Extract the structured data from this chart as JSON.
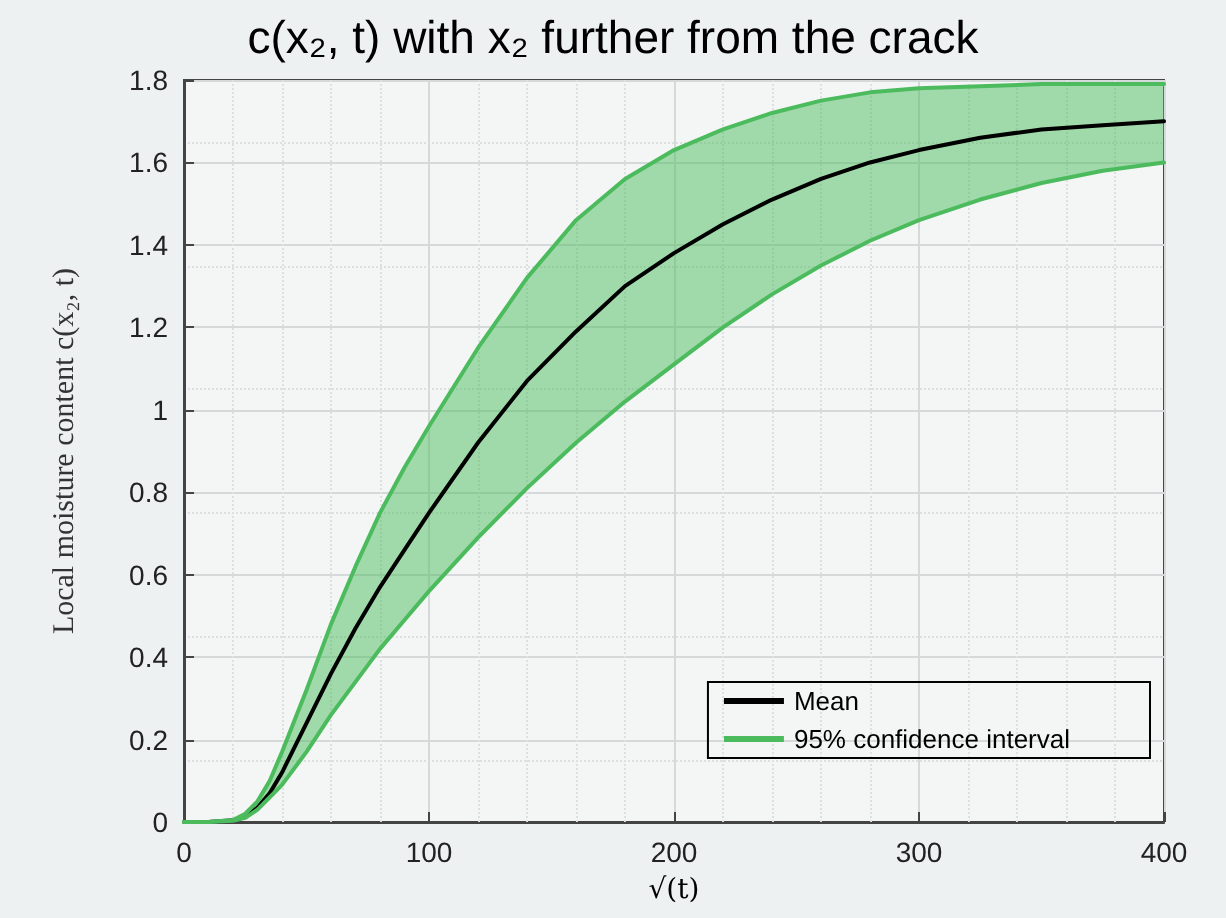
{
  "chart_data": {
    "type": "line",
    "title": "c(x₂, t) with x₂ further from the crack",
    "xlabel": "√(t)",
    "ylabel": "Local moisture content c(x₂, t)",
    "x": [
      0,
      10,
      20,
      25,
      30,
      35,
      40,
      50,
      60,
      70,
      80,
      90,
      100,
      120,
      140,
      160,
      180,
      200,
      220,
      240,
      260,
      280,
      300,
      325,
      350,
      375,
      400
    ],
    "series": [
      {
        "name": "Mean",
        "color": "#000000",
        "values": [
          0,
          0,
          0.004,
          0.015,
          0.035,
          0.07,
          0.12,
          0.24,
          0.36,
          0.47,
          0.57,
          0.66,
          0.75,
          0.92,
          1.07,
          1.19,
          1.3,
          1.38,
          1.45,
          1.51,
          1.56,
          1.6,
          1.63,
          1.66,
          1.68,
          1.69,
          1.7
        ],
        "lower": [
          0,
          0,
          0.003,
          0.01,
          0.03,
          0.06,
          0.09,
          0.17,
          0.26,
          0.34,
          0.42,
          0.49,
          0.56,
          0.69,
          0.81,
          0.92,
          1.02,
          1.11,
          1.2,
          1.28,
          1.35,
          1.41,
          1.46,
          1.51,
          1.55,
          1.58,
          1.6
        ],
        "upper": [
          0,
          0,
          0.005,
          0.02,
          0.05,
          0.1,
          0.17,
          0.32,
          0.48,
          0.62,
          0.75,
          0.86,
          0.96,
          1.15,
          1.32,
          1.46,
          1.56,
          1.63,
          1.68,
          1.72,
          1.75,
          1.77,
          1.78,
          1.785,
          1.79,
          1.79,
          1.79
        ]
      },
      {
        "name": "95% confidence interval",
        "color": "#4cbb5e",
        "values": [
          0,
          0,
          0.005,
          0.02,
          0.05,
          0.1,
          0.17,
          0.32,
          0.48,
          0.62,
          0.75,
          0.86,
          0.96,
          1.15,
          1.32,
          1.46,
          1.56,
          1.63,
          1.68,
          1.72,
          1.75,
          1.77,
          1.78,
          1.785,
          1.79,
          1.79,
          1.79
        ]
      },
      {
        "color": "#4cbb5e",
        "values": [
          0,
          0,
          0.003,
          0.01,
          0.03,
          0.06,
          0.09,
          0.17,
          0.26,
          0.34,
          0.42,
          0.49,
          0.56,
          0.69,
          0.81,
          0.92,
          1.02,
          1.11,
          1.2,
          1.28,
          1.35,
          1.41,
          1.46,
          1.51,
          1.55,
          1.58,
          1.6
        ]
      }
    ],
    "xlim": [
      0,
      400
    ],
    "xticks": [
      0,
      100,
      200,
      300,
      400
    ],
    "ylim": [
      0,
      1.8
    ],
    "yticks": [
      0,
      0.2,
      0.4,
      0.6,
      0.8,
      1,
      1.2,
      1.4,
      1.6,
      1.8
    ],
    "grid": true,
    "legend": "bottom right",
    "line_style": "solid",
    "marker": "none"
  }
}
